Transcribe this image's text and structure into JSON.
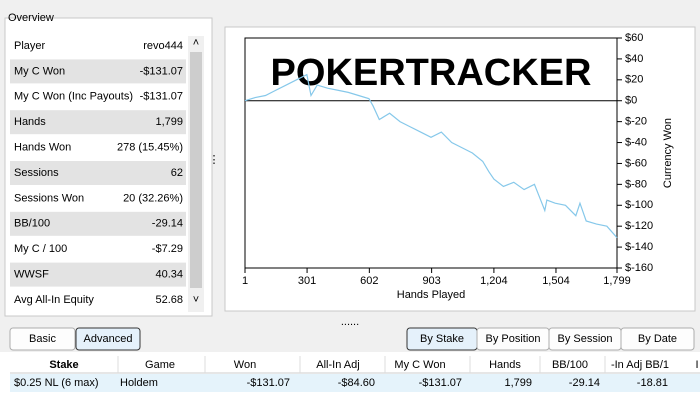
{
  "overview": {
    "title": "Overview",
    "rows": [
      [
        "Player",
        "revo444"
      ],
      [
        "My C Won",
        "-$131.07"
      ],
      [
        "My C Won (Inc Payouts)",
        "-$131.07"
      ],
      [
        "Hands",
        "1,799"
      ],
      [
        "Hands Won",
        "278 (15.45%)"
      ],
      [
        "Sessions",
        "62"
      ],
      [
        "Sessions Won",
        "20 (32.26%)"
      ],
      [
        "BB/100",
        "-29.14"
      ],
      [
        "My C / 100",
        "-$7.29"
      ],
      [
        "WWSF",
        "40.34"
      ],
      [
        "Avg All-In Equity",
        "52.68"
      ]
    ]
  },
  "chart_data": {
    "type": "line",
    "watermark": "POKERTRACKER",
    "x_label": "Hands Played",
    "y_label": "Currency Won",
    "x": [
      1,
      50,
      100,
      150,
      200,
      250,
      300,
      320,
      350,
      400,
      450,
      500,
      550,
      600,
      620,
      650,
      700,
      750,
      800,
      850,
      900,
      950,
      1000,
      1050,
      1100,
      1150,
      1180,
      1204,
      1250,
      1300,
      1350,
      1400,
      1420,
      1450,
      1460,
      1500,
      1550,
      1600,
      1620,
      1650,
      1700,
      1750,
      1799
    ],
    "series": [
      {
        "color": "#86c8ea",
        "values": [
          0,
          3,
          5,
          10,
          15,
          20,
          25,
          5,
          15,
          12,
          10,
          8,
          5,
          2,
          -5,
          -18,
          -12,
          -20,
          -25,
          -30,
          -35,
          -30,
          -40,
          -45,
          -50,
          -58,
          -68,
          -75,
          -82,
          -78,
          -85,
          -80,
          -90,
          -105,
          -95,
          -98,
          -100,
          -110,
          -98,
          -115,
          -118,
          -120,
          -131
        ]
      }
    ],
    "xlim": [
      1,
      1799
    ],
    "xticks": [
      1,
      301,
      602,
      903,
      {
        "value": 1204,
        "label": "1,204"
      },
      {
        "value": 1504,
        "label": "1,504"
      },
      {
        "value": 1799,
        "label": "1,799"
      }
    ],
    "ylim": [
      -160,
      60
    ],
    "yticks": [
      {
        "value": 60,
        "label": "$60"
      },
      {
        "value": 40,
        "label": "$40"
      },
      {
        "value": 20,
        "label": "$20"
      },
      {
        "value": 0,
        "label": "$0"
      },
      {
        "value": -20,
        "label": "$-20"
      },
      {
        "value": -40,
        "label": "$-40"
      },
      {
        "value": -60,
        "label": "$-60"
      },
      {
        "value": -80,
        "label": "$-80"
      },
      {
        "value": -100,
        "label": "$-100"
      },
      {
        "value": -120,
        "label": "$-120"
      },
      {
        "value": -140,
        "label": "$-140"
      },
      {
        "value": -160,
        "label": "$-160"
      }
    ]
  },
  "buttons": {
    "left": [
      "Basic",
      "Advanced"
    ],
    "right": [
      "By Stake",
      "By Position",
      "By Session",
      "By Date"
    ]
  },
  "table": {
    "headers": [
      "Stake",
      "Game",
      "Won",
      "All-In Adj",
      "My C Won",
      "Hands",
      "BB/100",
      "-In Adj BB/1",
      "I"
    ],
    "rows": [
      [
        "$0.25 NL (6 max)",
        "Holdem",
        "-$131.07",
        "-$84.60",
        "-$131.07",
        "1,799",
        "-29.14",
        "-18.81"
      ]
    ]
  }
}
